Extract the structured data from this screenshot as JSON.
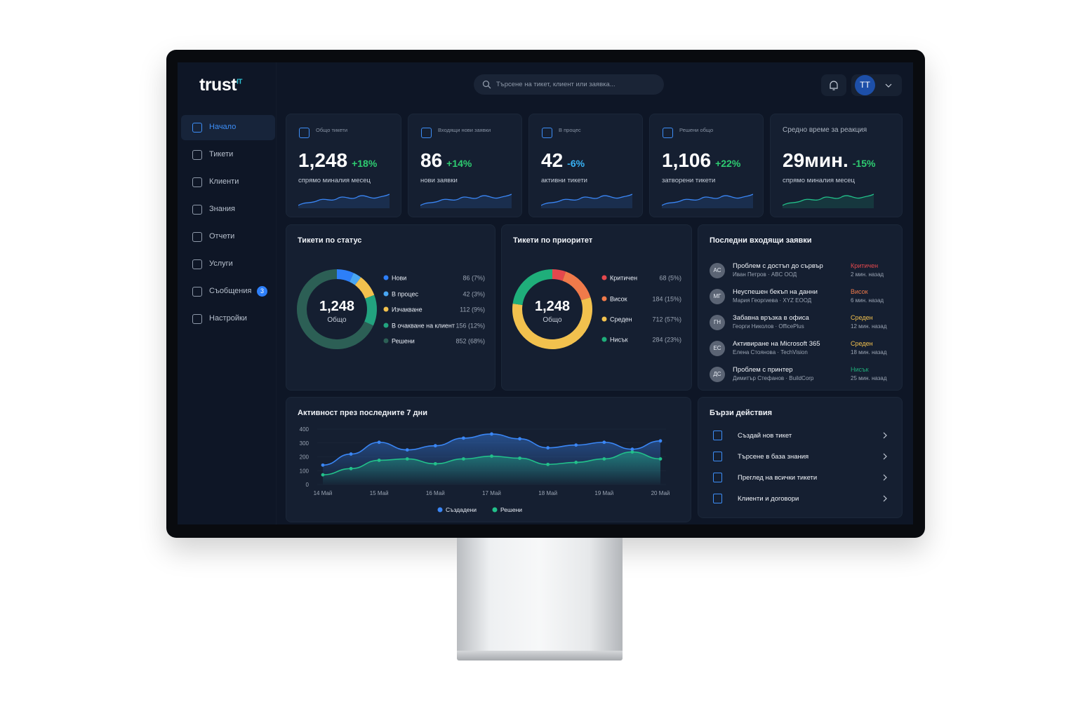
{
  "brand": "trust",
  "brand_suffix": "IT",
  "search_placeholder": "Търсене на тикет, клиент или заявка...",
  "user_initials": "TT",
  "nav": [
    {
      "label": "Начало",
      "active": true
    },
    {
      "label": "Тикети"
    },
    {
      "label": "Клиенти"
    },
    {
      "label": "Знания"
    },
    {
      "label": "Отчети"
    },
    {
      "label": "Услуги"
    },
    {
      "label": "Съобщения",
      "badge": 3
    },
    {
      "label": "Настройки"
    }
  ],
  "kpis": [
    {
      "label": "Общо тикети",
      "value": "1,248",
      "change": "+18%",
      "change_color": "#2ecc71",
      "caption": "спрямо миналия месец"
    },
    {
      "label": "Входящи нови заявки",
      "value": "86",
      "change": "+14%",
      "change_color": "#2ecc71",
      "caption": "нови заявки"
    },
    {
      "label": "В процес",
      "value": "42",
      "change": "-6%",
      "change_color": "#38b2f5",
      "caption": "активни тикети"
    },
    {
      "label": "Решени общо",
      "value": "1,106",
      "change": "+22%",
      "change_color": "#2ecc71",
      "caption": "затворени тикети"
    },
    {
      "label": "Средно време за реакция",
      "value": "29мин.",
      "change": "-15%",
      "change_color": "#2ecc71",
      "caption": "спрямо миналия месец"
    }
  ],
  "chart_data": [
    {
      "type": "donut",
      "title": "Тикети по статус",
      "center_value": "1,248",
      "center_label": "Общо",
      "categories": [
        "Нови",
        "В процес",
        "Изчакване",
        "В очакване на клиент",
        "Решени"
      ],
      "values": [
        86,
        42,
        112,
        156,
        852
      ],
      "value_labels": [
        "86 (7%)",
        "42 (3%)",
        "112 (9%)",
        "156 (12%)",
        "852 (68%)"
      ],
      "colors": [
        "#2d7ff9",
        "#49a6f2",
        "#f2c14e",
        "#22a37f",
        "#2c5f55"
      ]
    },
    {
      "type": "donut",
      "title": "Тикети по приоритет",
      "center_value": "1,248",
      "center_label": "Общо",
      "categories": [
        "Критичен",
        "Висок",
        "Среден",
        "Нисък"
      ],
      "values": [
        68,
        184,
        712,
        284
      ],
      "value_labels": [
        "68 (5%)",
        "184 (15%)",
        "712 (57%)",
        "284 (23%)"
      ],
      "colors": [
        "#e5484d",
        "#f07a4a",
        "#f2c14e",
        "#1fae7a"
      ]
    },
    {
      "type": "line",
      "title": "Активност през последните 7 дни",
      "categories": [
        "14 Май",
        null,
        "15 Май",
        null,
        "16 Май",
        null,
        "17 Май",
        null,
        "18 Май",
        null,
        "19 Май",
        null,
        "20 Май"
      ],
      "series": [
        {
          "name": "Създадени",
          "color": "#3a86f5",
          "values": [
            140,
            220,
            305,
            250,
            280,
            335,
            365,
            330,
            265,
            285,
            305,
            255,
            315
          ]
        },
        {
          "name": "Решени",
          "color": "#22c08a",
          "values": [
            70,
            115,
            175,
            185,
            150,
            185,
            205,
            190,
            145,
            160,
            185,
            235,
            185
          ]
        }
      ],
      "ylim": [
        0,
        400
      ],
      "yticks": [
        0,
        100,
        200,
        300,
        400
      ],
      "grid": true
    }
  ],
  "recent": {
    "title": "Последни входящи заявки",
    "items": [
      {
        "initials": "АС",
        "title": "Проблем с достъп до сървър",
        "subtitle": "Иван Петров · ABC ООД",
        "priority": "Критичен",
        "priority_color": "#e5484d",
        "time": "2 мин. назад"
      },
      {
        "initials": "МГ",
        "title": "Неуспешен бекъп на данни",
        "subtitle": "Мария Георгиева · XYZ ЕООД",
        "priority": "Висок",
        "priority_color": "#f07a4a",
        "time": "6 мин. назад"
      },
      {
        "initials": "ГН",
        "title": "Забавна връзка в офиса",
        "subtitle": "Георги Николов · OfficePlus",
        "priority": "Среден",
        "priority_color": "#f2c14e",
        "time": "12 мин. назад"
      },
      {
        "initials": "ЕС",
        "title": "Активиране на Microsoft 365",
        "subtitle": "Елена Стоянова · TechVision",
        "priority": "Среден",
        "priority_color": "#f2c14e",
        "time": "18 мин. назад"
      },
      {
        "initials": "ДС",
        "title": "Проблем с принтер",
        "subtitle": "Димитър Стефанов · BuildCorp",
        "priority": "Нисък",
        "priority_color": "#1fae7a",
        "time": "25 мин. назад"
      }
    ]
  },
  "quick_actions": {
    "title": "Бързи действия",
    "items": [
      "Създай нов тикет",
      "Търсене в база знания",
      "Преглед на всички тикети",
      "Клиенти и договори"
    ]
  }
}
